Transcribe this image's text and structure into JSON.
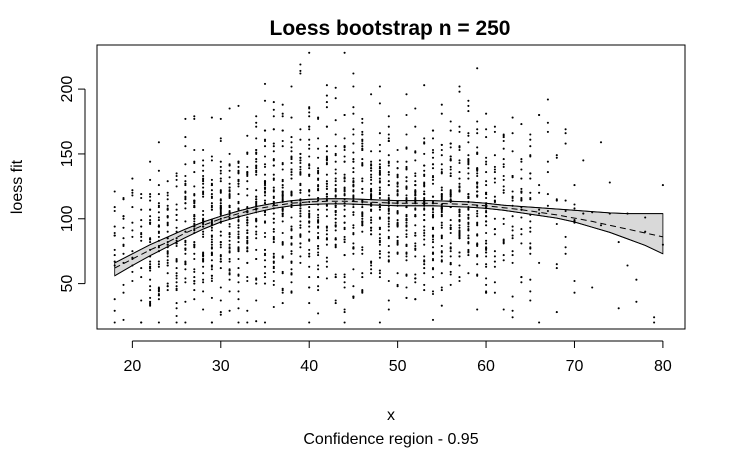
{
  "chart_data": {
    "type": "scatter",
    "title": "Loess bootstrap n = 250",
    "xlabel": "x",
    "ylabel": "loess fit",
    "subtitle": "Confidence region - 0.95",
    "xlim": [
      16,
      82.5
    ],
    "ylim": [
      15,
      234
    ],
    "x_ticks": [
      20,
      30,
      40,
      50,
      60,
      70,
      80
    ],
    "y_ticks": [
      50,
      100,
      150,
      200
    ],
    "x_tick_labels": [
      "20",
      "30",
      "40",
      "50",
      "60",
      "70",
      "80"
    ],
    "y_tick_labels": [
      "50",
      "100",
      "150",
      "200"
    ],
    "grid": false,
    "points_x_range": [
      18,
      80
    ],
    "points_y_range": [
      20,
      228
    ],
    "point_color": "#000000",
    "band_fill": "#d9d9d9",
    "fit_curve": {
      "x": [
        18,
        20,
        22,
        24,
        26,
        28,
        30,
        32,
        34,
        36,
        38,
        40,
        42,
        44,
        46,
        48,
        50,
        52,
        54,
        56,
        58,
        60,
        62,
        64,
        66,
        68,
        70,
        72,
        74,
        76,
        78,
        80
      ],
      "y": [
        62,
        69,
        76,
        82,
        89,
        95,
        100,
        104,
        107.5,
        110,
        112,
        113,
        113.5,
        113.5,
        113,
        112.5,
        112,
        112,
        112,
        111.5,
        111,
        110,
        108.5,
        107,
        105,
        103,
        100.5,
        98,
        95,
        92,
        89,
        86
      ],
      "lower": [
        56,
        64,
        71.5,
        78.5,
        85.5,
        92,
        97.5,
        101.5,
        105,
        108,
        110,
        111,
        111.5,
        111.5,
        111,
        110.5,
        110,
        110,
        110,
        109.5,
        109,
        108,
        106.5,
        104.5,
        102.5,
        100.5,
        97.5,
        93.5,
        89.5,
        84.5,
        79.5,
        73
      ],
      "upper": [
        66,
        73,
        80,
        86,
        92,
        97.5,
        102,
        106,
        109.5,
        112,
        114,
        115,
        115.5,
        115.5,
        115,
        114.5,
        114,
        114,
        114,
        113.5,
        113,
        112,
        110.5,
        109.5,
        108.5,
        107.5,
        106.5,
        105.5,
        104.5,
        104,
        104,
        104
      ]
    }
  }
}
